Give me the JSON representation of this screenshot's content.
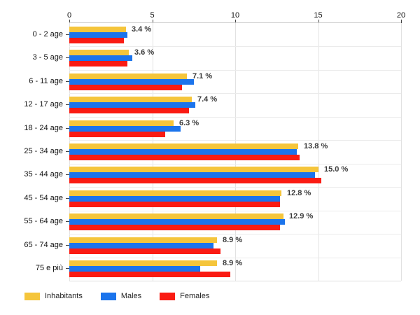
{
  "chart_data": {
    "type": "bar",
    "orientation": "horizontal",
    "title": "",
    "xlabel": "",
    "ylabel": "",
    "xlim": [
      0,
      20
    ],
    "x_ticks": [
      "0",
      "5",
      "10",
      "15",
      "20"
    ],
    "grid": true,
    "legend_position": "bottom",
    "categories": [
      "0 - 2 age",
      "3 - 5 age",
      "6 - 11 age",
      "12 - 17 age",
      "18 - 24 age",
      "25 - 34 age",
      "35 - 44 age",
      "45 - 54 age",
      "55 - 64 age",
      "65 - 74 age",
      "75 e più"
    ],
    "series": [
      {
        "name": "Inhabitants",
        "color": "#f5c53b",
        "values": [
          3.4,
          3.6,
          7.1,
          7.4,
          6.3,
          13.8,
          15.0,
          12.8,
          12.9,
          8.9,
          8.9
        ]
      },
      {
        "name": "Males",
        "color": "#1b74ec",
        "values": [
          3.5,
          3.8,
          7.5,
          7.6,
          6.7,
          13.7,
          14.8,
          12.7,
          13.0,
          8.7,
          7.9
        ]
      },
      {
        "name": "Females",
        "color": "#fa1b13",
        "values": [
          3.3,
          3.5,
          6.8,
          7.2,
          5.8,
          13.9,
          15.2,
          12.7,
          12.7,
          9.1,
          9.7
        ]
      }
    ],
    "bar_labels": [
      "3.4 %",
      "3.6 %",
      "7.1 %",
      "7.4 %",
      "6.3 %",
      "13.8 %",
      "15.0 %",
      "12.8 %",
      "12.9 %",
      "8.9 %",
      "8.9 %"
    ]
  },
  "legend": {
    "items": [
      {
        "label": "Inhabitants",
        "color": "#f5c53b"
      },
      {
        "label": "Males",
        "color": "#1b74ec"
      },
      {
        "label": "Females",
        "color": "#fa1b13"
      }
    ]
  }
}
